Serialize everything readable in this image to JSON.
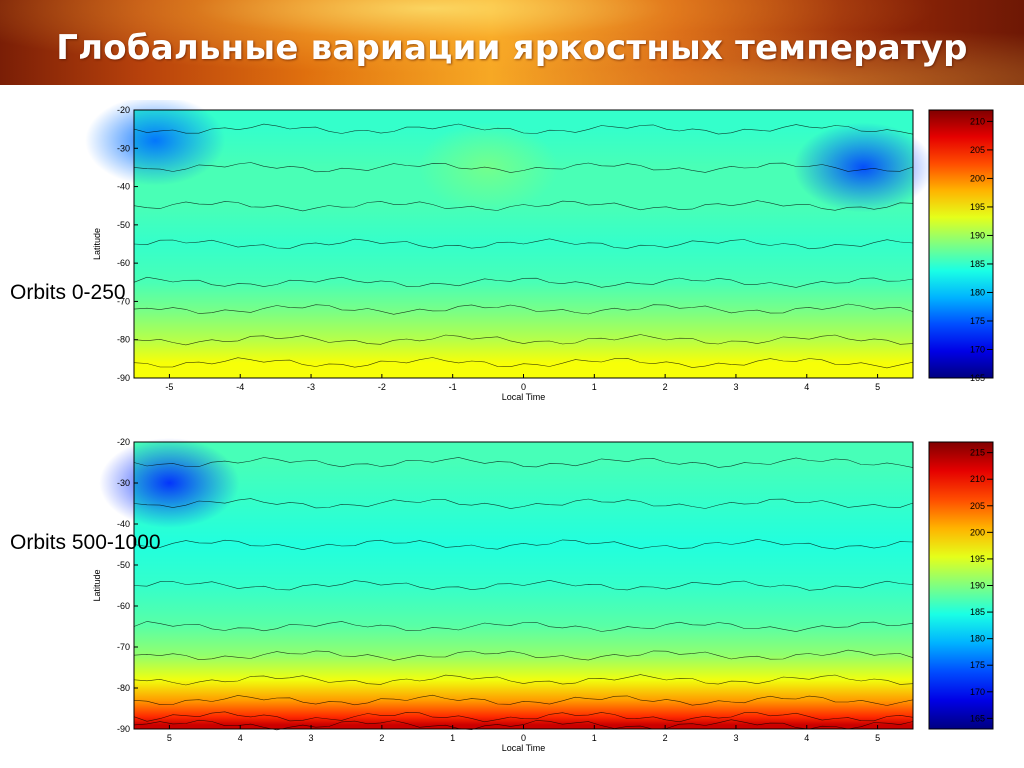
{
  "slide": {
    "title": "Глобальные вариации яркостных температур"
  },
  "chart_data": [
    {
      "type": "heatmap",
      "title": "",
      "side_label": "Orbits 0-250",
      "xlabel": "Local Time",
      "ylabel": "Latitude",
      "xlim": [
        -5.5,
        5.5
      ],
      "ylim": [
        -90,
        -20
      ],
      "x_ticks": [
        -5,
        -4,
        -3,
        -2,
        -1,
        0,
        1,
        2,
        3,
        4,
        5
      ],
      "y_ticks": [
        -20,
        -30,
        -40,
        -50,
        -60,
        -70,
        -80,
        -90
      ],
      "colorbar": {
        "min": 165,
        "max": 212,
        "ticks": [
          165,
          170,
          175,
          180,
          185,
          190,
          195,
          200,
          205,
          210
        ]
      },
      "latitude_band_temps": [
        {
          "lat": -25,
          "temp": 185
        },
        {
          "lat": -35,
          "temp": 186
        },
        {
          "lat": -45,
          "temp": 186
        },
        {
          "lat": -55,
          "temp": 185
        },
        {
          "lat": -65,
          "temp": 186
        },
        {
          "lat": -72,
          "temp": 188
        },
        {
          "lat": -80,
          "temp": 191
        },
        {
          "lat": -86,
          "temp": 194
        }
      ],
      "regions": [
        {
          "desc": "cold",
          "lat": -28,
          "local_time": -5.2,
          "temp": 176
        },
        {
          "desc": "cold",
          "lat": -35,
          "local_time": 4.8,
          "temp": 174
        },
        {
          "desc": "warm",
          "lat": -35,
          "local_time": -0.5,
          "temp": 188
        }
      ],
      "grid": false,
      "legend": "colorbar-right"
    },
    {
      "type": "heatmap",
      "title": "",
      "side_label": "Orbits 500-1000",
      "xlabel": "Local Time",
      "ylabel": "Latitude",
      "xlim": [
        -5.5,
        5.5
      ],
      "ylim": [
        -90,
        -20
      ],
      "x_ticks": [
        -5,
        -4,
        -3,
        -2,
        -1,
        0,
        1,
        2,
        3,
        4,
        5
      ],
      "x_tick_labels": [
        "5",
        "4",
        "3",
        "2",
        "1",
        "0",
        "1",
        "2",
        "3",
        "4",
        "5"
      ],
      "y_ticks": [
        -20,
        -30,
        -40,
        -50,
        -60,
        -70,
        -80,
        -90
      ],
      "colorbar": {
        "min": 163,
        "max": 217,
        "ticks": [
          165,
          170,
          175,
          180,
          185,
          190,
          195,
          200,
          205,
          210,
          215
        ]
      },
      "latitude_band_temps": [
        {
          "lat": -25,
          "temp": 187
        },
        {
          "lat": -35,
          "temp": 186
        },
        {
          "lat": -45,
          "temp": 185
        },
        {
          "lat": -55,
          "temp": 186
        },
        {
          "lat": -65,
          "temp": 188
        },
        {
          "lat": -72,
          "temp": 191
        },
        {
          "lat": -78,
          "temp": 196
        },
        {
          "lat": -83,
          "temp": 202
        },
        {
          "lat": -87,
          "temp": 208
        },
        {
          "lat": -89,
          "temp": 213
        }
      ],
      "regions": [
        {
          "desc": "cold",
          "lat": -30,
          "local_time": -5.0,
          "temp": 172
        }
      ],
      "grid": false,
      "legend": "colorbar-right"
    }
  ]
}
